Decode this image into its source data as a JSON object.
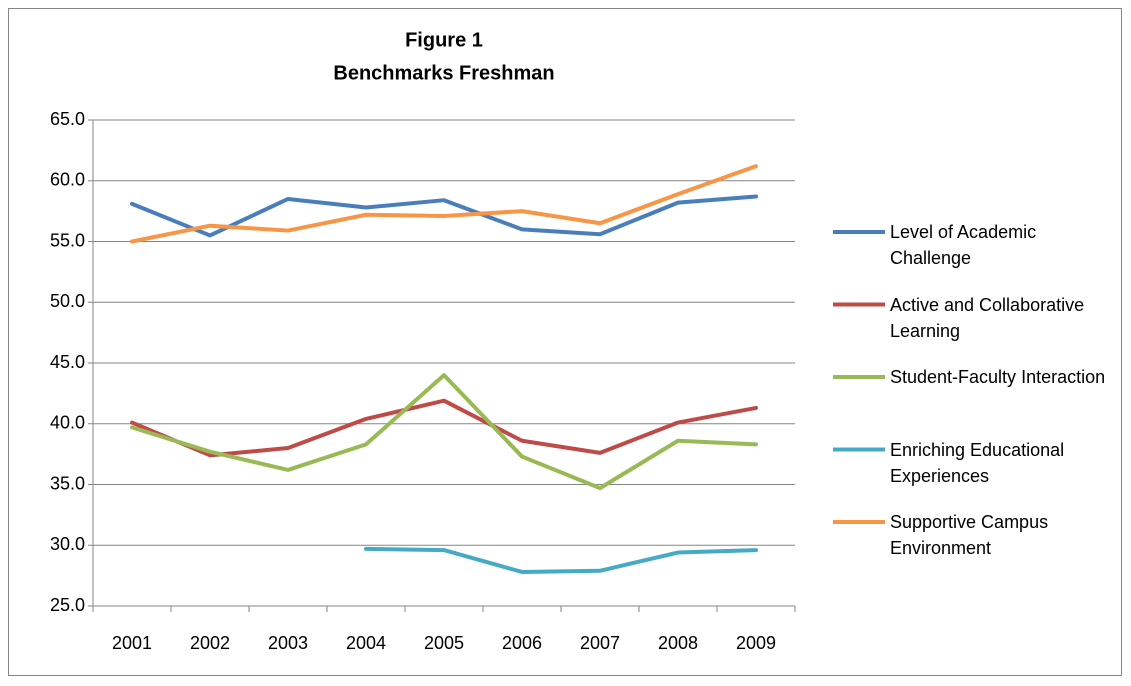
{
  "chart_data": {
    "type": "line",
    "title": "Figure 1",
    "subtitle": "Benchmarks Freshman",
    "categories": [
      "2001",
      "2002",
      "2003",
      "2004",
      "2005",
      "2006",
      "2007",
      "2008",
      "2009"
    ],
    "series": [
      {
        "name": "Level of Academic Challenge",
        "color": "#4a7ebb",
        "values": [
          58.1,
          55.5,
          58.5,
          57.8,
          58.4,
          56.0,
          55.6,
          58.2,
          58.7
        ]
      },
      {
        "name": "Active and Collaborative Learning",
        "color": "#be4b48",
        "values": [
          40.1,
          37.4,
          38.0,
          40.4,
          41.9,
          38.6,
          37.6,
          40.1,
          41.3
        ]
      },
      {
        "name": "Student-Faculty Interaction",
        "color": "#98b954",
        "values": [
          39.7,
          37.7,
          36.2,
          38.3,
          44.0,
          37.3,
          34.7,
          38.6,
          38.3
        ]
      },
      {
        "name": "Enriching Educational Experiences",
        "color": "#46aac5",
        "values": [
          null,
          null,
          null,
          29.7,
          29.6,
          27.8,
          27.9,
          29.4,
          29.6
        ]
      },
      {
        "name": "Supportive Campus Environment",
        "color": "#f79646",
        "values": [
          55.0,
          56.3,
          55.9,
          57.2,
          57.1,
          57.5,
          56.5,
          58.9,
          61.2
        ]
      }
    ],
    "ylim": [
      25,
      65
    ],
    "yticks": [
      {
        "value": 25,
        "label": "25.0"
      },
      {
        "value": 30,
        "label": "30.0"
      },
      {
        "value": 35,
        "label": "35.0"
      },
      {
        "value": 40,
        "label": "40.0"
      },
      {
        "value": 45,
        "label": "45.0"
      },
      {
        "value": 50,
        "label": "50.0"
      },
      {
        "value": 55,
        "label": "55.0"
      },
      {
        "value": 60,
        "label": "60.0"
      },
      {
        "value": 65,
        "label": "65.0"
      }
    ],
    "grid": true,
    "legend": "right"
  }
}
